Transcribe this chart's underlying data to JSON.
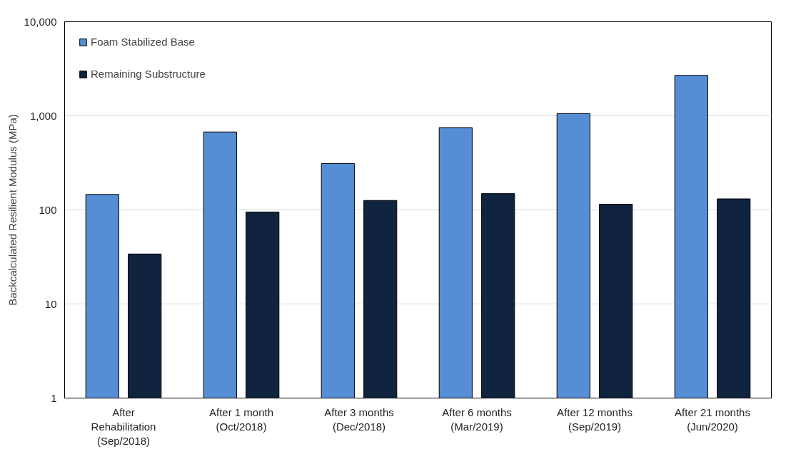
{
  "chart_data": {
    "type": "bar",
    "ylabel": "Backcalculated Resilient Modulus (MPa)",
    "categories": [
      "After\nRehabilitation\n(Sep/2018)",
      "After 1 month\n(Oct/2018)",
      "After 3 months\n(Dec/2018)",
      "After 6 months\n(Mar/2019)",
      "After 12 months\n(Sep/2019)",
      "After 21 months\n(Jun/2020)"
    ],
    "series": [
      {
        "name": "Foam Stabilized Base",
        "color": "#558ed5",
        "values": [
          146,
          673,
          311,
          750,
          1055,
          2690
        ]
      },
      {
        "name": "Remaining Substructure",
        "color": "#10243f",
        "values": [
          34,
          95,
          126,
          149,
          115,
          131
        ]
      }
    ],
    "log": true,
    "ylim": [
      1,
      10000
    ],
    "yticks": [
      1,
      10,
      100,
      {
        "value": 1000,
        "label": "1,000"
      },
      {
        "value": 10000,
        "label": "10,000"
      }
    ],
    "grid": "y",
    "legend": "top left"
  }
}
